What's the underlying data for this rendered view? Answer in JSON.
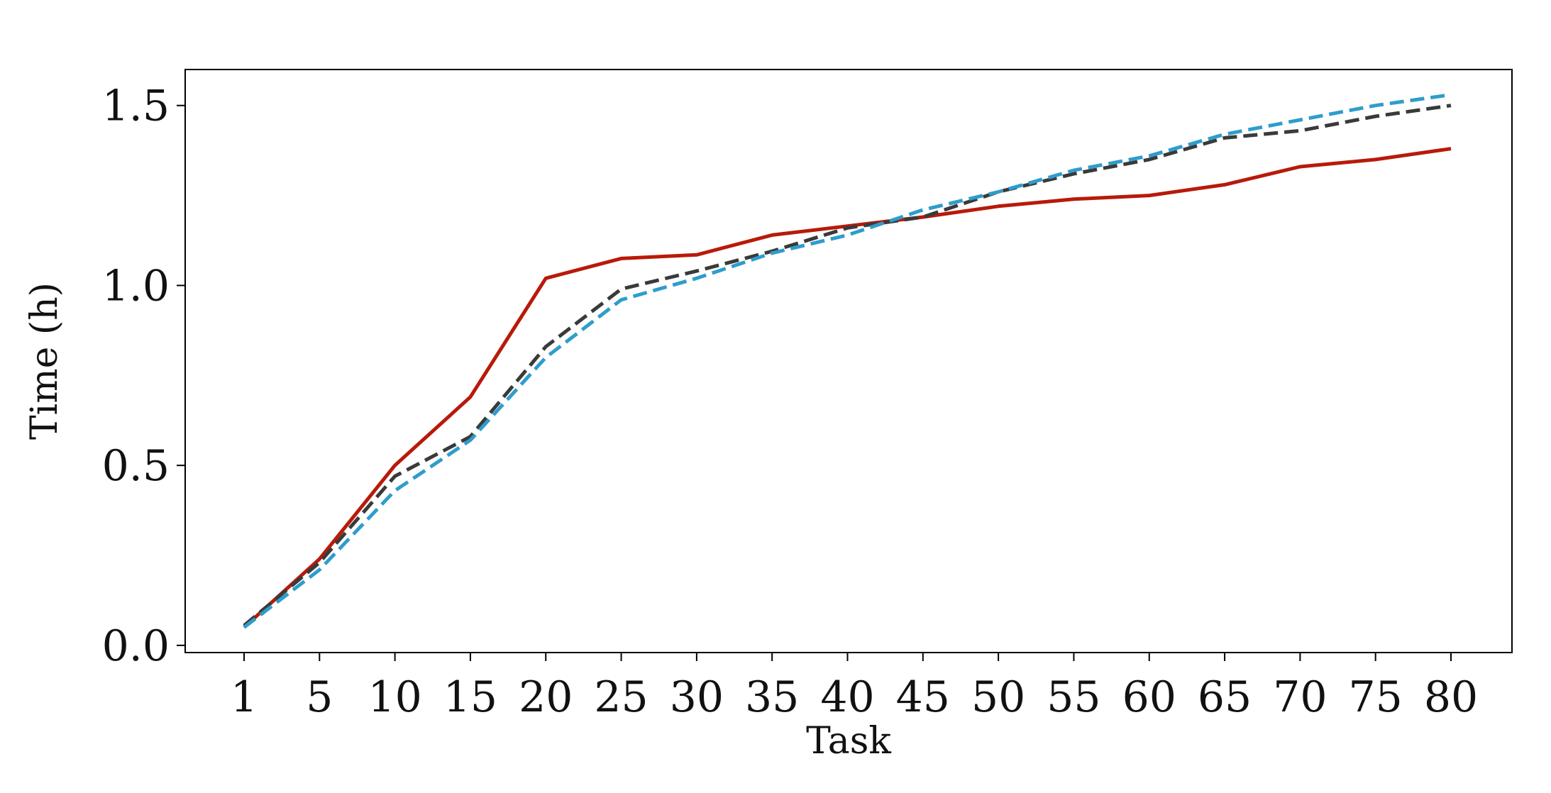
{
  "chart_data": {
    "type": "line",
    "title": "",
    "xlabel": "Task",
    "ylabel": "Time (h)",
    "categories": [
      "1",
      "5",
      "10",
      "15",
      "20",
      "25",
      "30",
      "35",
      "40",
      "45",
      "50",
      "55",
      "60",
      "65",
      "70",
      "75",
      "80"
    ],
    "ylim": [
      -0.02,
      1.6
    ],
    "yticks": [
      "0.0",
      "0.5",
      "1.0",
      "1.5"
    ],
    "grid": false,
    "legend": "none",
    "series": [
      {
        "color": "#b81a0a",
        "style": "solid",
        "values": [
          0.05,
          0.24,
          0.5,
          0.69,
          1.02,
          1.075,
          1.085,
          1.14,
          1.165,
          1.19,
          1.22,
          1.24,
          1.25,
          1.28,
          1.33,
          1.35,
          1.38
        ]
      },
      {
        "color": "#3a3a3a",
        "style": "dashed",
        "values": [
          0.055,
          0.23,
          0.47,
          0.58,
          0.83,
          0.99,
          1.04,
          1.095,
          1.16,
          1.19,
          1.26,
          1.31,
          1.35,
          1.41,
          1.43,
          1.47,
          1.5
        ]
      },
      {
        "color": "#2e9dcc",
        "style": "dashed",
        "values": [
          0.05,
          0.21,
          0.43,
          0.57,
          0.8,
          0.96,
          1.02,
          1.09,
          1.14,
          1.21,
          1.26,
          1.32,
          1.36,
          1.42,
          1.46,
          1.5,
          1.53
        ]
      }
    ]
  }
}
